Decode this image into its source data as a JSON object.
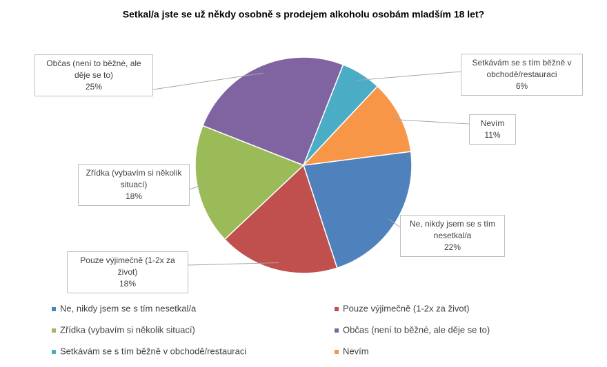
{
  "chart_data": {
    "type": "pie",
    "title": "Setkal/a jste se už někdy osobně s prodejem alkoholu osobám mladším 18 let?",
    "categories": [
      "Ne, nikdy jsem se s tím nesetkal/a",
      "Pouze výjimečně (1-2x za život)",
      "Zřídka (vybavím si několik situací)",
      "Občas (není to běžné, ale děje se to)",
      "Setkávám se s tím běžně v obchodě/restauraci",
      "Nevím"
    ],
    "values": [
      22,
      18,
      18,
      25,
      6,
      11
    ],
    "value_labels": [
      "22%",
      "18%",
      "18%",
      "25%",
      "6%",
      "11%"
    ],
    "colors": [
      "#4f81bd",
      "#c0504d",
      "#9bbb59",
      "#8064a2",
      "#4bacc6",
      "#f79646"
    ],
    "legend": "bottom"
  }
}
